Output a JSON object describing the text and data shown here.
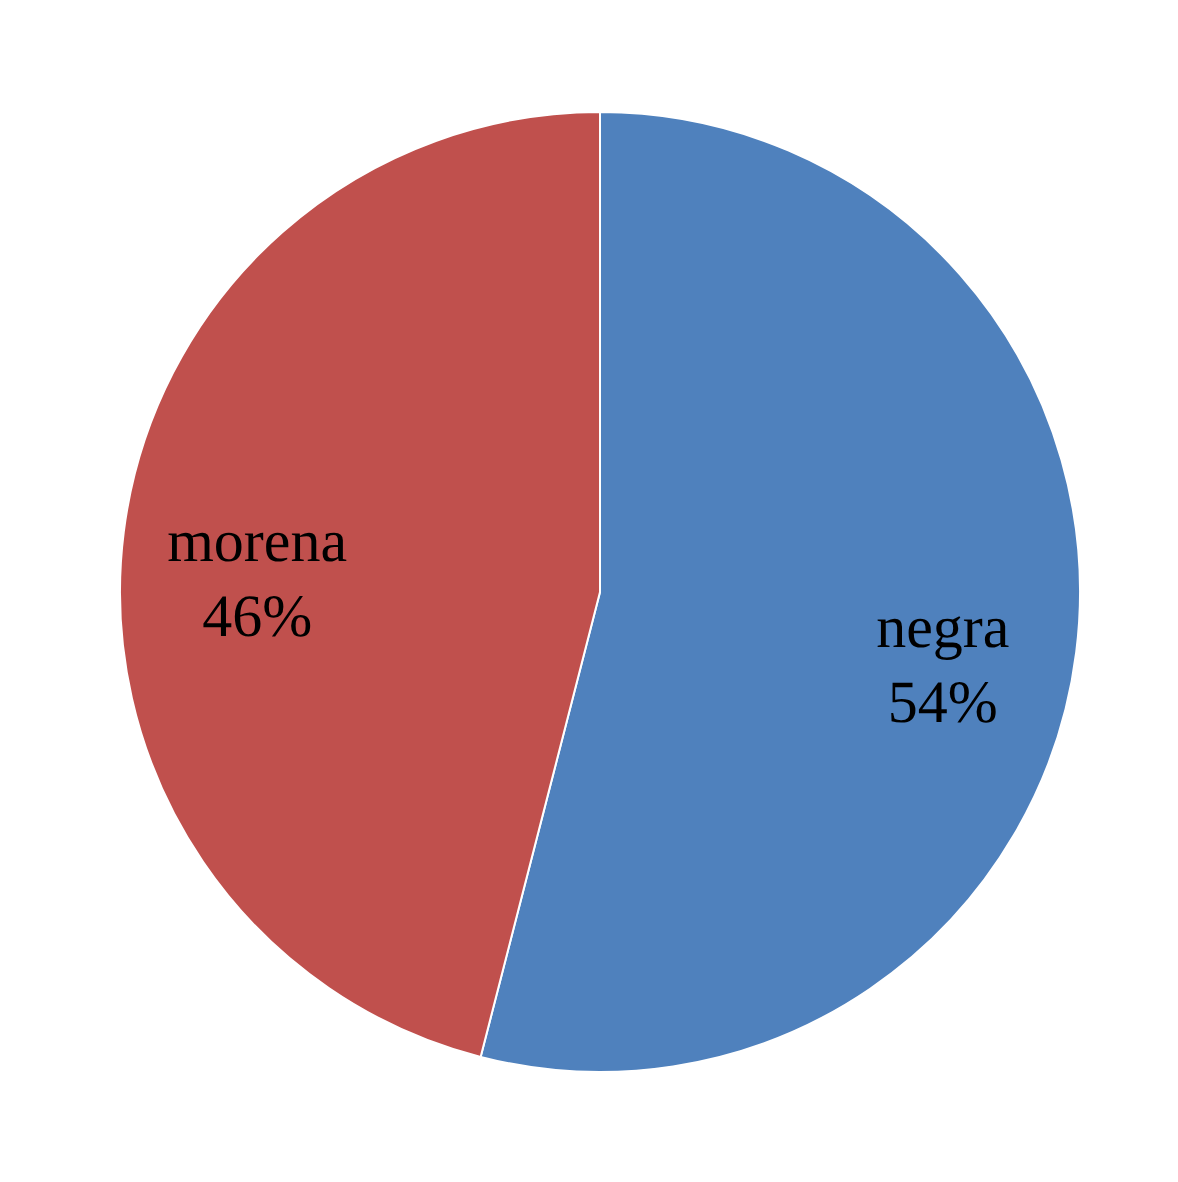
{
  "chart_data": {
    "type": "pie",
    "categories": [
      "negra",
      "morena"
    ],
    "values": [
      54,
      46
    ],
    "colors": [
      "#4f81bd",
      "#c0504d"
    ],
    "value_labels": [
      "54%",
      "46%"
    ]
  }
}
